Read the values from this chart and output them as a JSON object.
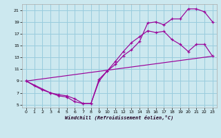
{
  "xlabel": "Windchill (Refroidissement éolien,°C)",
  "bg_color": "#cce8ef",
  "grid_color": "#99ccdd",
  "line_color": "#990099",
  "xlim": [
    -0.5,
    23.5
  ],
  "ylim": [
    4.5,
    22.0
  ],
  "yticks": [
    5,
    7,
    9,
    11,
    13,
    15,
    17,
    19,
    21
  ],
  "xticks": [
    0,
    1,
    2,
    3,
    4,
    5,
    6,
    7,
    8,
    9,
    10,
    11,
    12,
    13,
    14,
    15,
    16,
    17,
    18,
    19,
    20,
    21,
    22,
    23
  ],
  "line1_x": [
    0,
    1,
    2,
    3,
    4,
    5,
    6,
    7,
    8,
    9,
    10,
    11,
    12,
    13,
    14,
    15,
    16,
    17,
    18,
    19,
    20,
    21,
    22,
    23
  ],
  "line1_y": [
    9,
    8.2,
    7.5,
    7.0,
    6.5,
    6.3,
    5.5,
    5.2,
    5.2,
    9.0,
    10.7,
    11.8,
    13.3,
    14.3,
    15.7,
    18.8,
    19.0,
    18.5,
    19.5,
    19.5,
    21.2,
    21.2,
    20.7,
    19.0
  ],
  "line2_x": [
    0,
    3,
    4,
    5,
    6,
    7,
    8,
    9,
    10,
    11,
    12,
    13,
    14,
    15,
    16,
    17,
    18,
    19,
    20,
    21,
    22,
    23
  ],
  "line2_y": [
    9,
    7.0,
    6.7,
    6.5,
    6.0,
    5.2,
    5.2,
    9.3,
    10.7,
    12.3,
    14.0,
    15.5,
    16.5,
    17.5,
    17.2,
    17.4,
    16.0,
    15.2,
    14.0,
    15.2,
    15.2,
    13.2
  ],
  "line3_x": [
    0,
    23
  ],
  "line3_y": [
    9.0,
    13.2
  ]
}
